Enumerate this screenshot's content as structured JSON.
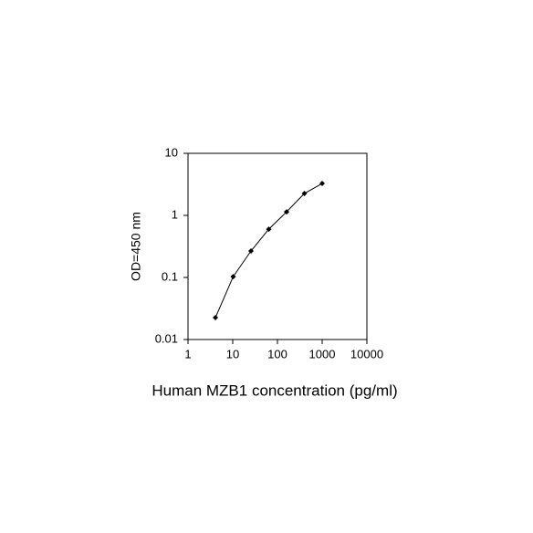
{
  "chart_data": {
    "type": "line",
    "x_label": "Human MZB1 concentration (pg/ml)",
    "y_label": "OD=450 nm",
    "x": [
      4.1,
      10.24,
      25.6,
      64,
      160,
      400,
      1000
    ],
    "series": [
      {
        "color": "#000000",
        "values": [
          0.0225,
          0.103,
          0.267,
          0.6,
          1.14,
          2.25,
          3.27
        ]
      }
    ],
    "xscale": "log",
    "yscale": "log",
    "xlim": [
      1,
      10000
    ],
    "ylim": [
      0.01,
      10
    ],
    "xticks": [
      1,
      10,
      100,
      1000,
      10000
    ],
    "yticks": [
      0.01,
      0.1,
      1,
      10
    ],
    "grid": false
  }
}
